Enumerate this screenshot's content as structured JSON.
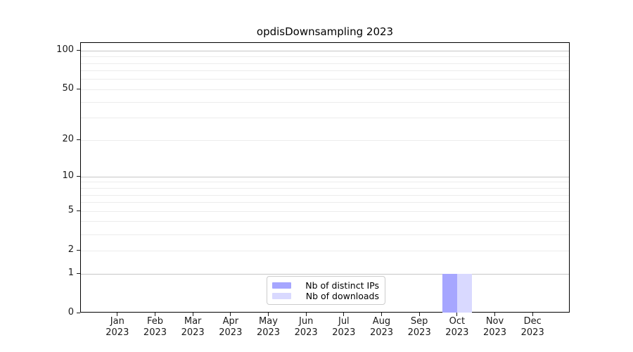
{
  "chart_data": {
    "type": "bar",
    "title": "opdisDownsampling 2023",
    "categories": [
      "Jan",
      "Feb",
      "Mar",
      "Apr",
      "May",
      "Jun",
      "Jul",
      "Aug",
      "Sep",
      "Oct",
      "Nov",
      "Dec"
    ],
    "category_year": "2023",
    "series": [
      {
        "name": "Nb of distinct IPs",
        "color": "#a6a6ff",
        "values": [
          0,
          0,
          0,
          0,
          0,
          0,
          0,
          0,
          0,
          1,
          0,
          0
        ]
      },
      {
        "name": "Nb of downloads",
        "color": "#d9d9ff",
        "values": [
          0,
          0,
          0,
          0,
          0,
          0,
          0,
          0,
          0,
          1,
          0,
          0
        ]
      }
    ],
    "yscale": "log1p",
    "ylim": [
      0,
      115
    ],
    "y_tick_labels": [
      "0",
      "1",
      "2",
      "5",
      "10",
      "20",
      "50",
      "100"
    ],
    "y_tick_values": [
      0,
      1,
      2,
      5,
      10,
      20,
      50,
      100
    ],
    "y_major_gridline_values": [
      1,
      10,
      100
    ],
    "y_minor_gridline_values": [
      2,
      3,
      4,
      5,
      6,
      7,
      8,
      9,
      20,
      30,
      40,
      50,
      60,
      70,
      80,
      90
    ],
    "grid": true,
    "legend_position": "lower center",
    "xlabel": "",
    "ylabel": "",
    "colors": {
      "major_grid": "#c6c6c6",
      "minor_grid": "#ececec",
      "axis": "#000000",
      "text": "#1a1a1a"
    }
  }
}
